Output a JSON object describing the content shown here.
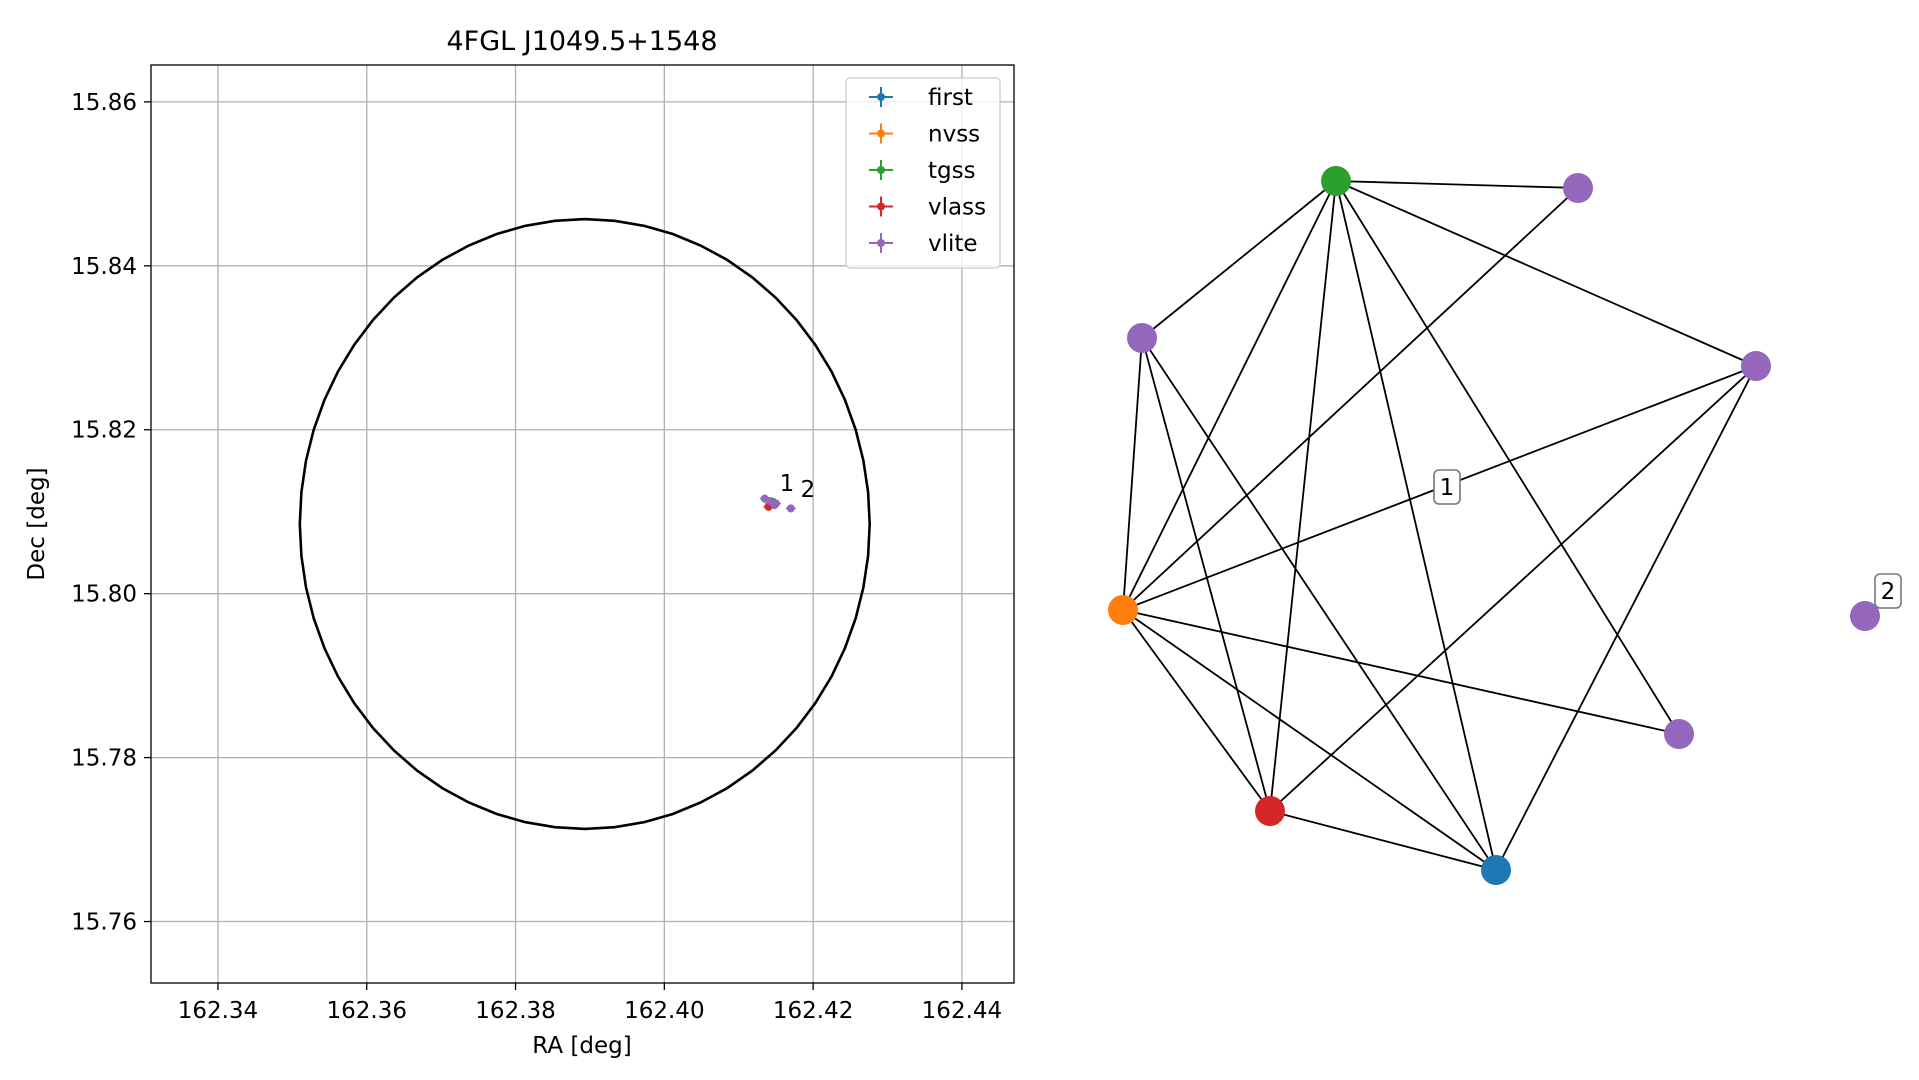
{
  "chart_data": [
    {
      "type": "scatter",
      "title": "4FGL J1049.5+1548",
      "xlabel": "RA [deg]",
      "ylabel": "Dec [deg]",
      "xlim": [
        162.331,
        162.447
      ],
      "ylim": [
        15.7525,
        15.8645
      ],
      "xticks": [
        "162.34",
        "162.36",
        "162.38",
        "162.40",
        "162.42",
        "162.44"
      ],
      "yticks": [
        "15.76",
        "15.78",
        "15.80",
        "15.82",
        "15.84",
        "15.86"
      ],
      "grid": true,
      "legend_position": "top-right",
      "legend": [
        "first",
        "nvss",
        "tgss",
        "vlass",
        "vlite"
      ],
      "ellipse": {
        "center_ra": 162.3893,
        "center_dec": 15.8085,
        "ra_radius": 0.0383,
        "dec_radius": 0.0372,
        "color": "#000000"
      },
      "series": [
        {
          "name": "first",
          "color": "#1f77b4",
          "points": [
            {
              "x": 162.4145,
              "y": 15.8112
            }
          ]
        },
        {
          "name": "nvss",
          "color": "#ff7f0e",
          "points": [
            {
              "x": 162.4142,
              "y": 15.811
            }
          ]
        },
        {
          "name": "tgss",
          "color": "#2ca02c",
          "points": [
            {
              "x": 162.4146,
              "y": 15.8112
            }
          ]
        },
        {
          "name": "vlass",
          "color": "#d62728",
          "points": [
            {
              "x": 162.414,
              "y": 15.8106
            }
          ]
        },
        {
          "name": "vlite",
          "color": "#9467bd",
          "points": [
            {
              "x": 162.4135,
              "y": 15.8116
            },
            {
              "x": 162.4142,
              "y": 15.8113
            },
            {
              "x": 162.415,
              "y": 15.811
            },
            {
              "x": 162.4148,
              "y": 15.8108
            },
            {
              "x": 162.417,
              "y": 15.8104
            }
          ]
        }
      ],
      "annotations": [
        {
          "text": "1",
          "x": 162.4155,
          "y": 15.8125
        },
        {
          "text": "2",
          "x": 162.4183,
          "y": 15.8118
        }
      ]
    },
    {
      "type": "network",
      "nodes": [
        {
          "id": "tgss",
          "color": "#2ca02c"
        },
        {
          "id": "vlite-a",
          "color": "#9467bd"
        },
        {
          "id": "vlite-b",
          "color": "#9467bd"
        },
        {
          "id": "vlite-c",
          "color": "#9467bd"
        },
        {
          "id": "nvss",
          "color": "#ff7f0e"
        },
        {
          "id": "vlite-d",
          "color": "#9467bd"
        },
        {
          "id": "vlass",
          "color": "#d62728"
        },
        {
          "id": "first",
          "color": "#1f77b4"
        },
        {
          "id": "vlite-e",
          "color": "#9467bd"
        }
      ],
      "edges": [
        [
          "tgss",
          "vlite-a"
        ],
        [
          "tgss",
          "vlite-b"
        ],
        [
          "tgss",
          "vlite-c"
        ],
        [
          "tgss",
          "nvss"
        ],
        [
          "tgss",
          "vlass"
        ],
        [
          "tgss",
          "first"
        ],
        [
          "tgss",
          "vlite-d"
        ],
        [
          "vlite-a",
          "nvss"
        ],
        [
          "vlite-b",
          "nvss"
        ],
        [
          "vlite-b",
          "vlass"
        ],
        [
          "vlite-b",
          "first"
        ],
        [
          "vlite-c",
          "nvss"
        ],
        [
          "vlite-c",
          "vlass"
        ],
        [
          "vlite-c",
          "first"
        ],
        [
          "nvss",
          "vlite-d"
        ],
        [
          "nvss",
          "vlass"
        ],
        [
          "nvss",
          "first"
        ],
        [
          "vlass",
          "first"
        ]
      ],
      "cluster_labels": [
        {
          "text": "1",
          "cluster": 1
        },
        {
          "text": "2",
          "cluster": 2
        }
      ]
    }
  ]
}
